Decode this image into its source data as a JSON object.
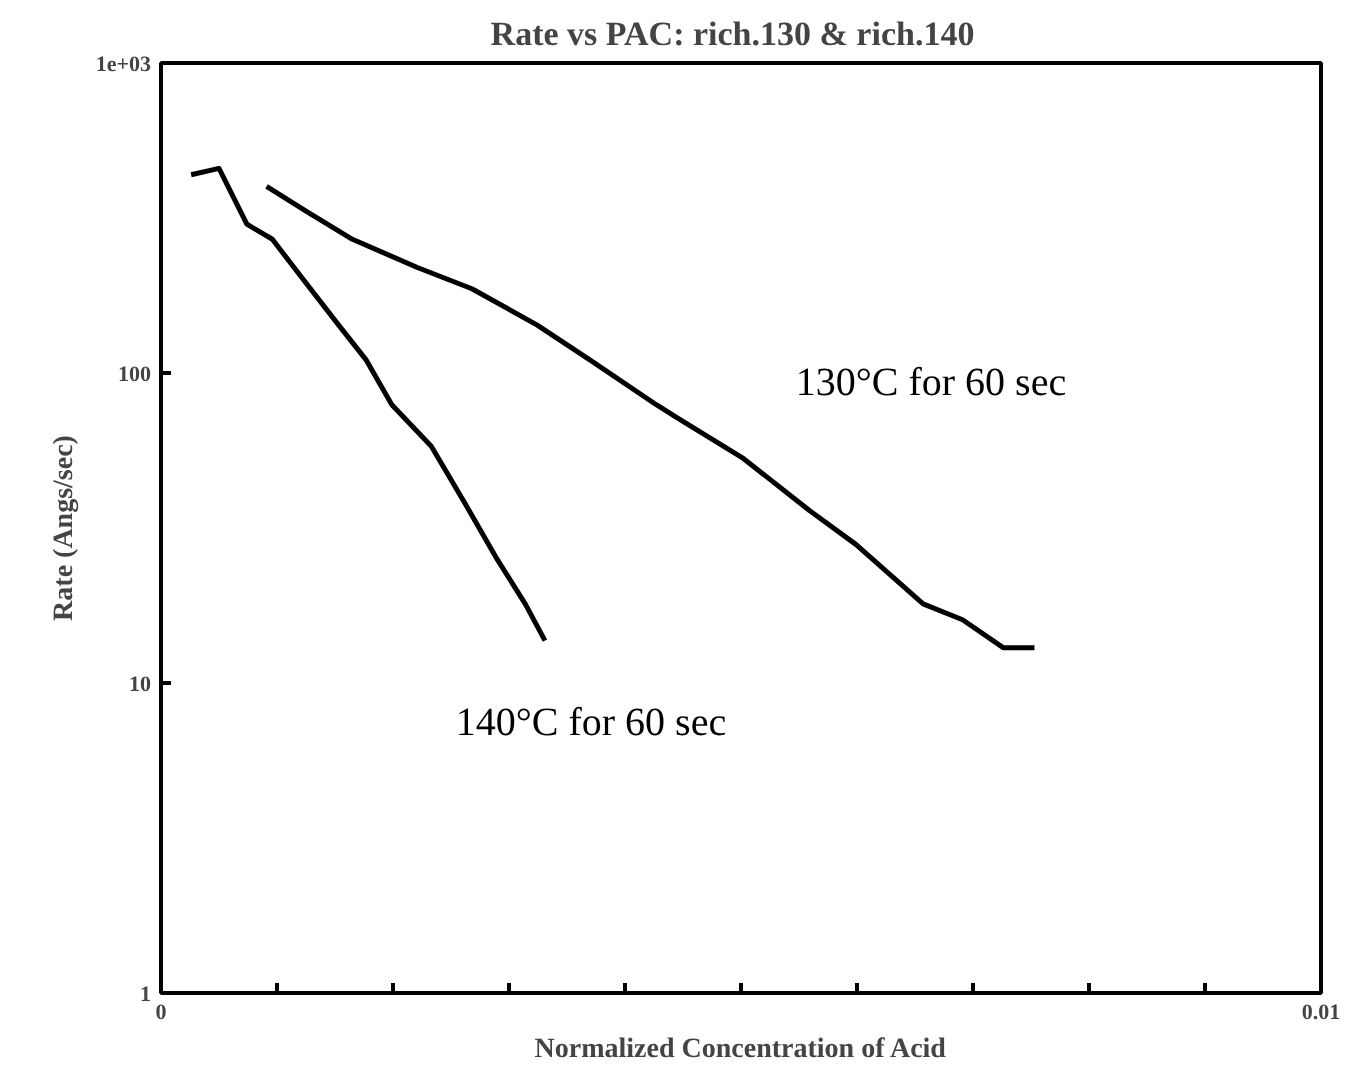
{
  "chart_data": {
    "type": "line",
    "title": "Rate vs PAC: rich.130  &  rich.140",
    "xlabel": "Normalized Concentration of Acid",
    "ylabel": "Rate (Angs/sec)",
    "log": "y",
    "grid": false,
    "legend": false,
    "marker": "none",
    "line_style": "solid",
    "xlim": [
      0,
      0.01
    ],
    "ylim": [
      1,
      1000
    ],
    "xticks": [
      0,
      {
        "value": 0.001,
        "label": null
      },
      {
        "value": 0.002,
        "label": null
      },
      {
        "value": 0.003,
        "label": null
      },
      {
        "value": 0.004,
        "label": null
      },
      {
        "value": 0.005,
        "label": null
      },
      {
        "value": 0.006,
        "label": null
      },
      {
        "value": 0.007,
        "label": null
      },
      {
        "value": 0.008,
        "label": null
      },
      {
        "value": 0.009,
        "label": null
      },
      0.01
    ],
    "yticks": [
      1,
      10,
      100,
      {
        "value": 1000,
        "label": "1e+03"
      }
    ],
    "series": [
      {
        "name": "130°C for 60 sec",
        "color": "#000000",
        "x": [
          0.00091,
          0.00125,
          0.00165,
          0.00221,
          0.00268,
          0.00324,
          0.0037,
          0.00427,
          0.00444,
          0.00502,
          0.00559,
          0.00599,
          0.00657,
          0.00691,
          0.00726,
          0.00753
        ],
        "values": [
          400,
          333,
          270,
          219,
          187,
          143,
          110,
          79,
          72,
          53,
          36,
          28,
          18,
          16,
          13,
          13
        ]
      },
      {
        "name": "140°C for 60 sec",
        "color": "#000000",
        "x": [
          0.00026,
          0.0005,
          0.00074,
          0.00096,
          0.00125,
          0.00153,
          0.00177,
          0.00199,
          0.00233,
          0.00262,
          0.0029,
          0.00314,
          0.00331
        ],
        "values": [
          436,
          457,
          302,
          270,
          195,
          143,
          110,
          79,
          58,
          38,
          25,
          18,
          13.7
        ]
      }
    ]
  }
}
